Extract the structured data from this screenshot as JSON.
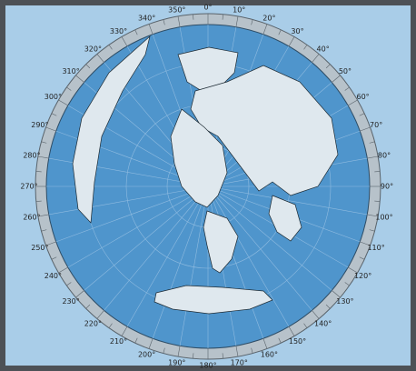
{
  "map": {
    "azimuth_labels": [
      "0°",
      "10°",
      "20°",
      "30°",
      "40°",
      "50°",
      "60°",
      "70°",
      "80°",
      "90°",
      "100°",
      "110°",
      "120°",
      "130°",
      "140°",
      "150°",
      "160°",
      "170°",
      "180°",
      "190°",
      "200°",
      "210°",
      "220°",
      "230°",
      "240°",
      "250°",
      "260°",
      "270°",
      "280°",
      "290°",
      "300°",
      "310°",
      "320°",
      "330°",
      "340°",
      "350°"
    ]
  }
}
